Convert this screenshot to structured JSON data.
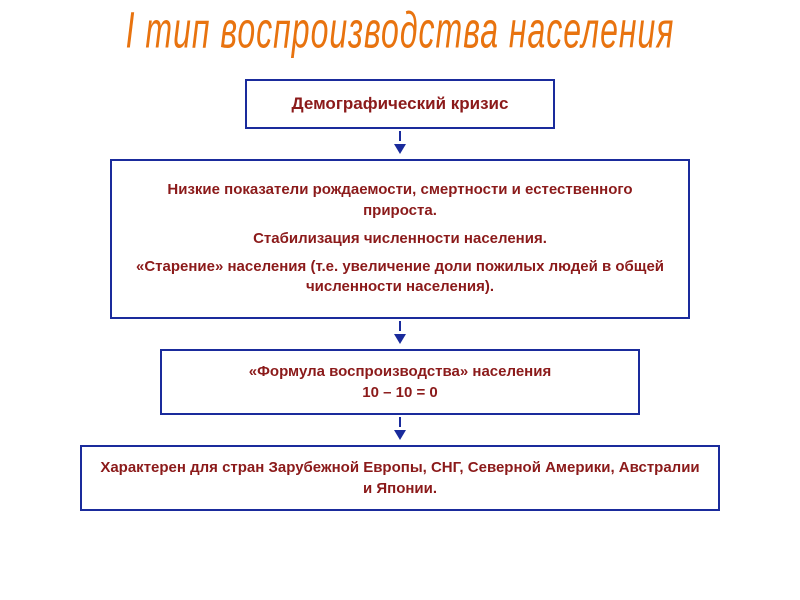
{
  "colors": {
    "title": "#e8730f",
    "border": "#1a2b9c",
    "text_dark": "#8b1a1a",
    "arrow": "#1a2b9c",
    "background": "#ffffff"
  },
  "title": "I тип воспроизводства населения",
  "boxes": {
    "b1": {
      "text": "Демографический кризис"
    },
    "b2": {
      "p1": "Низкие показатели рождаемости, смертности и естественного прироста.",
      "p2": "Стабилизация численности населения.",
      "p3": "«Старение» населения (т.е. увеличение доли пожилых людей в общей численности населения)."
    },
    "b3": {
      "line1": "«Формула воспроизводства» населения",
      "line2": "10 – 10 = 0"
    },
    "b4": {
      "text": "Характерен для стран Зарубежной Европы, СНГ, Северной Америки, Австралии и Японии."
    }
  },
  "style": {
    "title_fontsize": 32,
    "box_border_width": 2,
    "box_fontsize_main": 17,
    "box_fontsize_body": 15,
    "arrow_size": 6
  }
}
